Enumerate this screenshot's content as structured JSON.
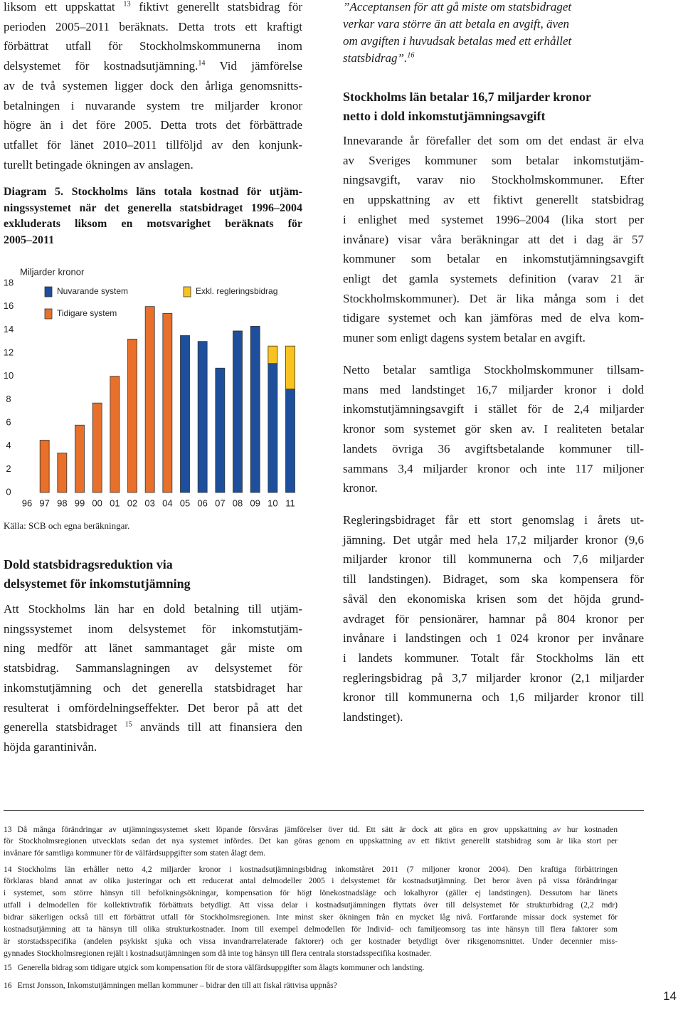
{
  "left_column": {
    "paragraph_1": [
      [
        "liksom ett uppskattat ",
        "13",
        " fiktivt generellt statsbidrag för"
      ],
      "perioden 2005–2011 beräknats. Detta trots ett kraftigt",
      "förbättrat utfall för Stockholmskommunerna inom",
      [
        "delsystemet för kostnadsutjämning.",
        "14",
        " Vid jämförelse"
      ],
      "av de två systemen ligger dock den årliga genomsnitts-",
      "betalningen i nuvarande system tre miljarder kronor",
      "högre än i det före 2005. Detta trots det förbättrade",
      "utfallet för länet 2010–2011 tillföljd av den konjunk-",
      "turellt betingade ökningen av anslagen."
    ],
    "diagram_caption": [
      "Diagram 5. Stockholms läns totala kostnad för utjäm-",
      "ningssystemet när det generella statsbidraget 1996–2004",
      "exkluderats liksom en motsvarighet beräknats för",
      "2005–2011"
    ],
    "chart_source": "Källa: SCB och egna beräkningar.",
    "heading": [
      "Dold statsbidragsreduktion via",
      "delsystemet för inkomstutjämning"
    ],
    "paragraph_2": [
      "Att Stockholms län har en dold betalning till utjäm-",
      "ningssystemet inom delsystemet för inkomstutjäm-",
      "ning medför att länet sammantaget går miste om",
      "statsbidrag. Sammanslagningen av delsystemet för",
      "inkomstutjämning och det generella statsbidraget har",
      "resulterat i omfördelningseffekter. Det beror på att det",
      [
        "generella statsbidraget ",
        "15",
        " används till att finansiera den"
      ],
      "höjda garantinivån."
    ]
  },
  "right_column": {
    "quote": [
      "”Acceptansen för att gå miste om statsbidraget",
      "verkar vara större än att betala en avgift, även",
      "om avgiften i huvudsak betalas med ett erhållet",
      [
        "statsbidrag”.",
        "16"
      ]
    ],
    "heading": [
      "Stockholms län betalar 16,7 miljarder kronor",
      "netto i dold inkomstutjämningsavgift"
    ],
    "paragraph_3": [
      "Innevarande år förefaller det som om det endast är elva",
      "av Sveriges kommuner som betalar inkomstutjäm-",
      "ningsavgift, varav nio Stockholmskommuner. Efter",
      "en uppskattning av ett fiktivt generellt statsbidrag",
      "i enlighet med systemet 1996–2004 (lika stort per",
      "invånare) visar våra beräkningar att det i dag är 57",
      "kommuner som betalar en inkomstutjämningsavgift",
      "enligt det gamla systemets definition (varav 21 är",
      "Stockholmskommuner). Det är lika många som i det",
      "tidigare systemet och kan jämföras med de elva kom-",
      "muner som enligt dagens system betalar en avgift."
    ],
    "paragraph_4": [
      "Netto betalar samtliga Stockholmskommuner tillsam-",
      "mans med landstinget 16,7 miljarder kronor i dold",
      "inkomstutjämningsavgift i stället för de 2,4 miljarder",
      "kronor som systemet gör sken av. I realiteten betalar",
      "landets övriga 36 avgiftsbetalande kommuner till-",
      "sammans 3,4 miljarder kronor och inte 117 miljoner",
      "kronor."
    ],
    "paragraph_5": [
      "Regleringsbidraget får ett stort genomslag i årets ut-",
      "jämning. Det utgår med hela 17,2 miljarder kronor (9,6",
      "miljarder kronor till kommunerna och 7,6 miljarder",
      "till landstingen). Bidraget, som ska kompensera för",
      "såväl den ekonomiska krisen som det höjda grund-",
      "avdraget för pensionärer, hamnar på 804 kronor per",
      "invånare i landstingen och 1 024 kronor per invånare",
      "i landets kommuner. Totalt får Stockholms län ett",
      "regleringsbidrag på 3,7 miljarder kronor (2,1 miljarder",
      "kronor till kommunerna och 1,6 miljarder kronor till",
      "landstinget)."
    ]
  },
  "chart_data": {
    "type": "bar",
    "stacked": true,
    "y_label": "Miljarder kronor",
    "categories": [
      "96",
      "97",
      "98",
      "99",
      "00",
      "01",
      "02",
      "03",
      "04",
      "05",
      "06",
      "07",
      "08",
      "09",
      "10",
      "11"
    ],
    "series": [
      {
        "name": "Tidigare system",
        "color": "#e8702a",
        "values": [
          null,
          4.5,
          3.4,
          5.8,
          7.7,
          10.0,
          13.2,
          16.0,
          15.4,
          null,
          null,
          null,
          null,
          null,
          null,
          null
        ]
      },
      {
        "name": "Nuvarande system",
        "color": "#1d4f9c",
        "values": [
          null,
          null,
          null,
          null,
          null,
          null,
          null,
          null,
          null,
          13.5,
          13.0,
          10.7,
          13.9,
          14.3,
          11.1,
          8.9
        ]
      },
      {
        "name": "Exkl. regleringsbidrag",
        "color": "#f9c31f",
        "values": [
          null,
          null,
          null,
          null,
          null,
          null,
          null,
          null,
          null,
          null,
          null,
          null,
          null,
          null,
          1.5,
          3.7
        ]
      }
    ],
    "ylim": [
      0,
      18
    ],
    "yticks": [
      0,
      2,
      4,
      6,
      8,
      10,
      12,
      14,
      16,
      18
    ],
    "grid": false
  },
  "footnotes": [
    {
      "number": "13",
      "lines": [
        "Då många förändringar av utjämningssystemet skett löpande försvåras jämförelser över tid. Ett sätt är dock att göra en grov uppskattning av hur kostnaden",
        "för Stockholmsregionen utvecklats sedan det nya systemet infördes. Det kan göras genom en uppskattning av ett fiktivt generellt statsbidrag som är lika stort per",
        "invånare för samtliga kommuner för de välfärdsuppgifter som staten ålagt dem."
      ]
    },
    {
      "number": "14",
      "lines": [
        "Stockholms län erhåller netto 4,2 miljarder kronor i kostnadsutjämningsbidrag inkomståret 2011 (7 miljoner kronor 2004). Den kraftiga förbättringen",
        "förklaras bland annat av olika justeringar och ett reducerat antal delmodeller 2005 i delsystemet för kostnadsutjämning. Det beror även på vissa förändringar",
        "i systemet, som större hänsyn till befolkningsökningar, kompensation för högt lönekostnadsläge och lokalhyror (gäller ej landstingen). Dessutom har länets",
        "utfall i delmodellen för kollektivtrafik förbättrats betydligt. Att vissa delar i kostnadsutjämningen flyttats över till delsystemet för strukturbidrag (2,2 mdr)",
        "bidrar säkerligen också till ett förbättrat utfall för Stockholmsregionen. Inte minst sker ökningen från en mycket låg nivå. Fortfarande missar dock systemet för",
        "kostnadsutjämning att ta hänsyn till olika strukturkostnader. Inom till exempel delmodellen för Individ- och familjeomsorg tas inte hänsyn till flera faktorer som",
        "är storstadsspecifika (andelen psykiskt sjuka och vissa invandrarrelaterade faktorer) och ger kostnader betydligt över riksgenomsnittet. Under decennier miss-",
        "gynnades Stockholmsregionen rejält i kostnadsutjämningen som då inte tog hänsyn till flera centrala storstadsspecifika kostnader."
      ]
    },
    {
      "number": "15",
      "lines": [
        "Generella bidrag som tidigare utgick som kompensation för de stora välfärdsuppgifter som ålagts kommuner och landsting."
      ]
    },
    {
      "number": "16",
      "lines": [
        "Ernst Jonsson, Inkomstutjämningen mellan kommuner – bidrar den till att fiskal rättvisa uppnås?"
      ]
    }
  ],
  "page_number": "14"
}
